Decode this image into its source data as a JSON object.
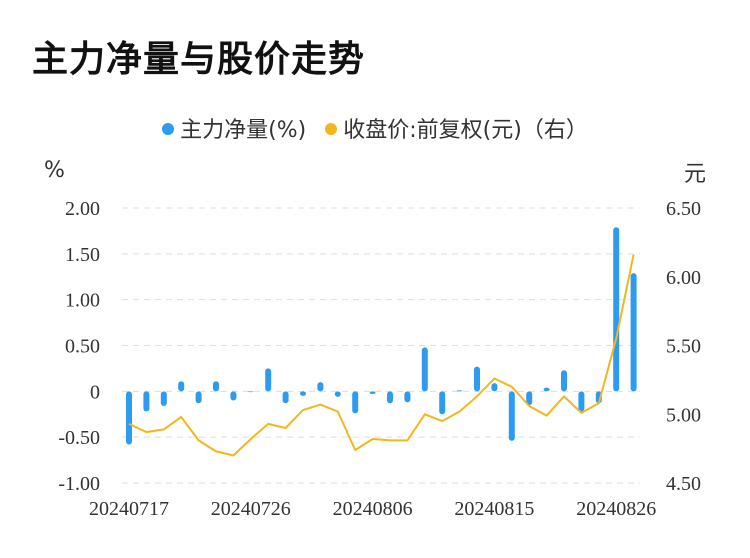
{
  "title": "主力净量与股价走势",
  "legend": [
    {
      "label": "主力净量(%)",
      "color": "#2d9cf0"
    },
    {
      "label": "收盘价:前复权(元)（右）",
      "color": "#f3b61c"
    }
  ],
  "chart_data": {
    "type": "bar+line",
    "title": "主力净量与股价走势",
    "left_axis_unit": "%",
    "right_axis_unit": "元",
    "x_ticks": [
      "20240717",
      "20240726",
      "20240806",
      "20240815",
      "20240826"
    ],
    "x_tick_indices": [
      0,
      7,
      14,
      21,
      28
    ],
    "left_ylim": [
      -1.0,
      2.0
    ],
    "left_ticks": [
      "-1.00",
      "-0.50",
      "0",
      "0.50",
      "1.00",
      "1.50",
      "2.00"
    ],
    "right_ylim": [
      4.5,
      6.5
    ],
    "right_ticks": [
      "4.50",
      "5.00",
      "5.50",
      "6.00",
      "6.50"
    ],
    "grid": true,
    "colors": {
      "bar": "#2d9cf0",
      "line": "#f3b61c",
      "grid": "#dddddd"
    },
    "series": [
      {
        "name": "主力净量(%)",
        "type": "bar",
        "axis": "left",
        "values": [
          -0.58,
          -0.22,
          -0.16,
          0.11,
          -0.13,
          0.11,
          -0.1,
          0.0,
          0.25,
          -0.13,
          -0.05,
          0.1,
          -0.06,
          -0.24,
          -0.03,
          -0.13,
          -0.12,
          0.48,
          -0.25,
          0.01,
          0.27,
          0.09,
          -0.54,
          -0.15,
          0.04,
          0.23,
          -0.22,
          -0.13,
          1.79,
          1.29
        ]
      },
      {
        "name": "收盘价:前复权(元)（右）",
        "type": "line",
        "axis": "right",
        "values": [
          4.93,
          4.87,
          4.89,
          4.98,
          4.81,
          4.73,
          4.7,
          4.82,
          4.93,
          4.9,
          5.03,
          5.07,
          5.02,
          4.74,
          4.82,
          4.81,
          4.81,
          5.0,
          4.95,
          5.02,
          5.13,
          5.26,
          5.2,
          5.06,
          4.99,
          5.13,
          5.01,
          5.08,
          5.55,
          6.16
        ]
      }
    ]
  }
}
